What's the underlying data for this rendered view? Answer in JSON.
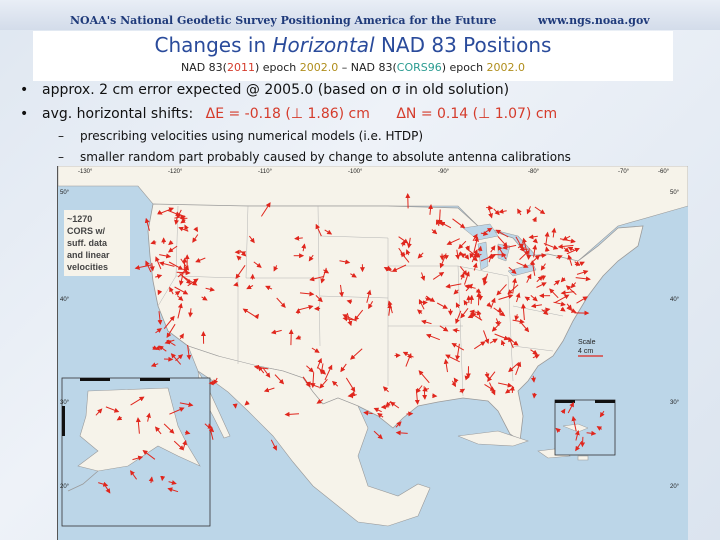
{
  "header": {
    "logo_text": "NOAA's National Geodetic Survey Positioning America for the Future",
    "url": "www.ngs.noaa.gov"
  },
  "title": {
    "part1": "Changes in ",
    "italic": "Horizontal",
    "part2": " NAD 83 Positions"
  },
  "subtitle": {
    "a": "NAD 83(",
    "b": "2011",
    "c": ") epoch ",
    "d": "2002.0",
    "e": " – NAD 83(",
    "f": "CORS96",
    "g": ") epoch ",
    "h": "2002.0"
  },
  "bullets": [
    "approx. 2 cm error expected @ 2005.0 (based on σ in old solution)",
    "avg. horizontal shifts:"
  ],
  "shifts": {
    "de": "ΔE = -0.18 (⊥ 1.86) cm",
    "dn": "ΔN = 0.14 (⊥ 1.07) cm"
  },
  "sub_bullets": [
    "prescribing velocities using numerical models (i.e. HTDP)",
    "smaller random part probably caused by change to absolute antenna calibrations"
  ],
  "map": {
    "legend_lines": [
      "~1270",
      "CORS w/",
      "suff. data",
      "and linear",
      "velocities"
    ],
    "scale_label": "Scale",
    "scale_value": "4 cm",
    "lat_labels": [
      "50°",
      "40°",
      "30°",
      "20°"
    ],
    "lon_labels": [
      "-130°",
      "-120°",
      "-110°",
      "-100°",
      "-90°",
      "-80°",
      "-70°",
      "-60°"
    ],
    "colors": {
      "land": "#f6f3ea",
      "water": "#bcd6e8",
      "arrow": "#e0261d",
      "border": "#9a9a9a"
    }
  }
}
